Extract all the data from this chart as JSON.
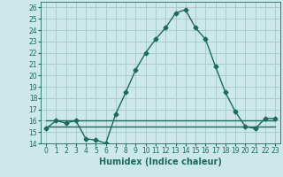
{
  "title": "",
  "xlabel": "Humidex (Indice chaleur)",
  "background_color": "#cce8e8",
  "grid_color": "#aacccc",
  "line_color": "#1a6b5a",
  "xlim": [
    -0.5,
    23.5
  ],
  "ylim": [
    14,
    26.5
  ],
  "yticks": [
    14,
    15,
    16,
    17,
    18,
    19,
    20,
    21,
    22,
    23,
    24,
    25,
    26
  ],
  "xticks": [
    0,
    1,
    2,
    3,
    4,
    5,
    6,
    7,
    8,
    9,
    10,
    11,
    12,
    13,
    14,
    15,
    16,
    17,
    18,
    19,
    20,
    21,
    22,
    23
  ],
  "main_series": [
    15.3,
    16.0,
    15.8,
    16.0,
    14.4,
    14.3,
    14.0,
    16.6,
    18.5,
    20.5,
    22.0,
    23.2,
    24.2,
    25.5,
    25.8,
    24.2,
    23.2,
    20.8,
    18.5,
    16.8,
    15.5,
    15.3,
    16.2,
    16.2
  ],
  "flat_series": [
    16.0,
    16.0,
    16.0,
    16.0,
    16.0,
    16.0,
    16.0,
    16.0,
    16.0,
    16.0,
    16.0,
    16.0,
    16.0,
    16.0,
    16.0,
    16.0,
    16.0,
    16.0,
    16.0,
    16.0,
    16.0,
    16.0,
    16.0,
    16.0
  ],
  "flat2_series": [
    15.5,
    15.5,
    15.5,
    15.5,
    15.5,
    15.5,
    15.5,
    15.5,
    15.5,
    15.5,
    15.5,
    15.5,
    15.5,
    15.5,
    15.5,
    15.5,
    15.5,
    15.5,
    15.5,
    15.5,
    15.5,
    15.5,
    15.5,
    15.5
  ],
  "marker": "D",
  "marker_size": 2.5,
  "line_width": 1.0,
  "label_fontsize": 7.0,
  "tick_fontsize": 5.5
}
